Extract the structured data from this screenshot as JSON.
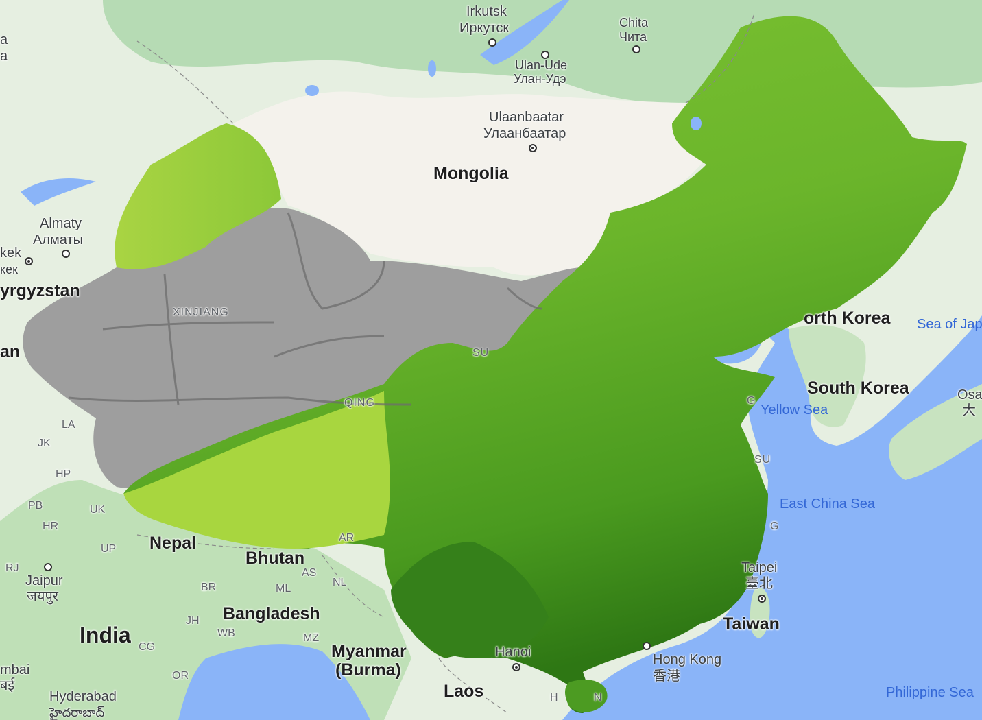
{
  "map": {
    "countries": {
      "mongolia": "Mongolia",
      "north_korea": "orth Korea",
      "south_korea": "South Korea",
      "nepal": "Nepal",
      "bhutan": "Bhutan",
      "bangladesh": "Bangladesh",
      "india": "India",
      "myanmar_1": "Myanmar",
      "myanmar_2": "(Burma)",
      "laos": "Laos",
      "taiwan": "Taiwan",
      "kyrgyzstan": "yrgyzstan",
      "left_edge_an": "an"
    },
    "cities": {
      "irkutsk": "Irkutsk",
      "irkutsk_ru": "Иркутск",
      "chita": "Chita",
      "chita_ru": "Чита",
      "ulan_ude": "Ulan-Ude",
      "ulan_ude_ru": "Улан-Удэ",
      "ulaanbaatar": "Ulaanbaatar",
      "ulaanbaatar_mn": "Улаанбаатар",
      "almaty": "Almaty",
      "almaty_ru": "Алматы",
      "bishkek": "kek",
      "bishkek_ru": "кек",
      "jaipur": "Jaipur",
      "jaipur_hi": "जयपुर",
      "hyderabad": "Hyderabad",
      "hyderabad_te": "హైదరాబాద్",
      "mumbai": "mbai",
      "mumbai_mr": "बई",
      "hanoi": "Hanoi",
      "hong_kong": "Hong Kong",
      "hong_kong_zh": "香港",
      "taipei": "Taipei",
      "taipei_zh": "臺北",
      "osaka": "Osa",
      "osaka_ja": "大",
      "top_left_a1": "a",
      "top_left_a2": "a"
    },
    "seas": {
      "sea_of_japan": "Sea of Jap",
      "yellow_sea": "Yellow Sea",
      "east_china_sea": "East China Sea",
      "philippine_sea": "Philippine Sea"
    },
    "regions": {
      "xinjiang": "XINJIANG",
      "qinghai": "QING",
      "gansu": "SU",
      "jiangsu": "SU",
      "shandong": "G",
      "zhejiang": "G",
      "hainan_h": "H",
      "hainan_n": "N"
    },
    "states": {
      "la": "LA",
      "jk": "JK",
      "hp": "HP",
      "pb": "PB",
      "uk": "UK",
      "hr": "HR",
      "up": "UP",
      "rj": "RJ",
      "br": "BR",
      "jh": "JH",
      "wb": "WB",
      "cg": "CG",
      "or": "OR",
      "as": "AS",
      "ml": "ML",
      "nl": "NL",
      "mz": "MZ",
      "ar": "AR"
    },
    "colors": {
      "water": "#8ab4f8",
      "land": "#e8f0e0",
      "forest": "#a8d8a8",
      "mongolia_land": "#f5f3ed",
      "china_grey": "#9e9e9e",
      "ndvi_light": "#a6d63e",
      "ndvi_mid": "#6fb82c",
      "ndvi_dark": "#2f7a15"
    }
  }
}
